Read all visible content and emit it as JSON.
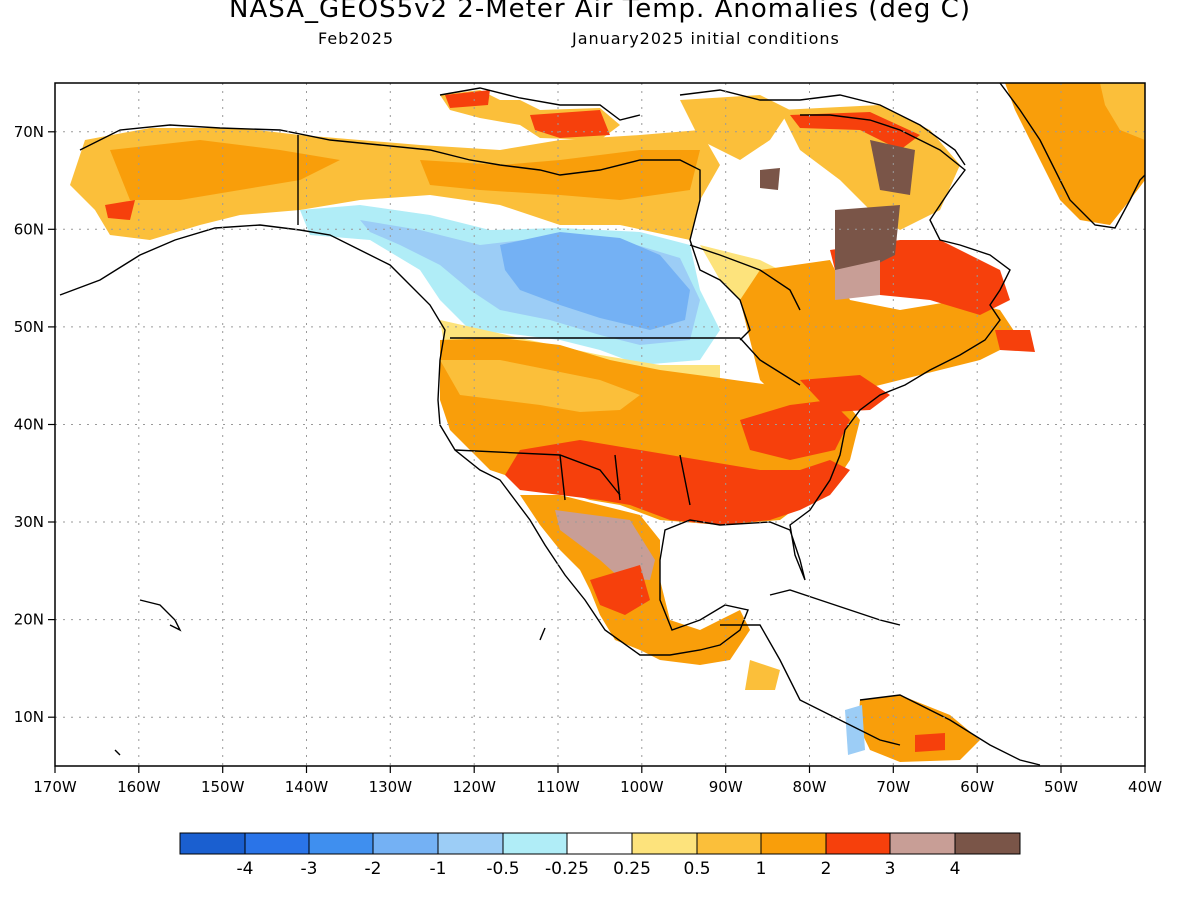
{
  "title": "NASA_GEOS5v2 2-Meter Air Temp. Anomalies (deg C)",
  "subtitle_left": "Feb2025",
  "subtitle_right": "January2025 initial conditions",
  "map": {
    "lon_range": [
      -170,
      -40
    ],
    "lat_range": [
      5,
      75
    ],
    "x_ticks": [
      "170W",
      "160W",
      "150W",
      "140W",
      "130W",
      "120W",
      "110W",
      "100W",
      "90W",
      "80W",
      "70W",
      "60W",
      "50W",
      "40W"
    ],
    "y_ticks": [
      "10N",
      "20N",
      "30N",
      "40N",
      "50N",
      "60N",
      "70N"
    ]
  },
  "colorbar": {
    "colors": [
      "#1a5fd0",
      "#2a74e8",
      "#3f8fef",
      "#74b1f4",
      "#9ccdf6",
      "#b0edf7",
      "#ffffff",
      "#fde37c",
      "#fbbf3a",
      "#f99e0a",
      "#f6400c",
      "#c89e96",
      "#7a5548"
    ],
    "labels": [
      "-4",
      "-3",
      "-2",
      "-1",
      "-0.5",
      "-0.25",
      "0.25",
      "0.5",
      "1",
      "2",
      "3",
      "4"
    ]
  }
}
